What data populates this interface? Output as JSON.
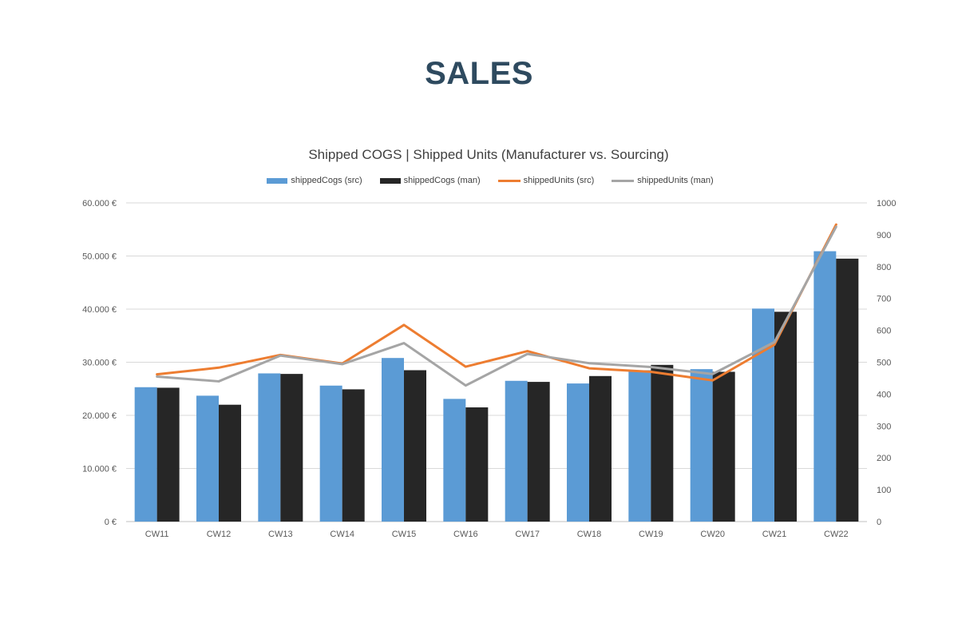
{
  "page": {
    "title": "SALES"
  },
  "chart_data": {
    "type": "bar",
    "title": "Shipped COGS | Shipped Units (Manufacturer vs. Sourcing)",
    "categories": [
      "CW11",
      "CW12",
      "CW13",
      "CW14",
      "CW15",
      "CW16",
      "CW17",
      "CW18",
      "CW19",
      "CW20",
      "CW21",
      "CW22"
    ],
    "legend_position": "top",
    "grid": true,
    "y_left": {
      "min": 0,
      "max": 60000,
      "step": 10000,
      "tick_labels": [
        "0 €",
        "10.000 €",
        "20.000 €",
        "30.000 €",
        "40.000 €",
        "50.000 €",
        "60.000 €"
      ]
    },
    "y_right": {
      "min": 0,
      "max": 1000,
      "step": 100,
      "tick_labels": [
        "0",
        "100",
        "200",
        "300",
        "400",
        "500",
        "600",
        "700",
        "800",
        "900",
        "1000"
      ]
    },
    "series": [
      {
        "name": "shippedCogs (src)",
        "type": "bar",
        "axis": "left",
        "color": "#5b9bd5",
        "values": [
          25300,
          23700,
          27900,
          25600,
          30800,
          23100,
          26500,
          26000,
          28500,
          28700,
          40100,
          50900
        ]
      },
      {
        "name": "shippedCogs (man)",
        "type": "bar",
        "axis": "left",
        "color": "#262626",
        "values": [
          25200,
          22000,
          27800,
          24900,
          28500,
          21500,
          26300,
          27400,
          29500,
          28200,
          39500,
          49500
        ]
      },
      {
        "name": "shippedUnits (src)",
        "type": "line",
        "axis": "right",
        "color": "#ed7d31",
        "values": [
          462,
          483,
          523,
          496,
          617,
          486,
          535,
          481,
          470,
          443,
          555,
          932
        ]
      },
      {
        "name": "shippedUnits (man)",
        "type": "line",
        "axis": "right",
        "color": "#a5a5a5",
        "values": [
          455,
          440,
          521,
          494,
          560,
          427,
          526,
          497,
          485,
          463,
          563,
          925
        ]
      }
    ]
  }
}
